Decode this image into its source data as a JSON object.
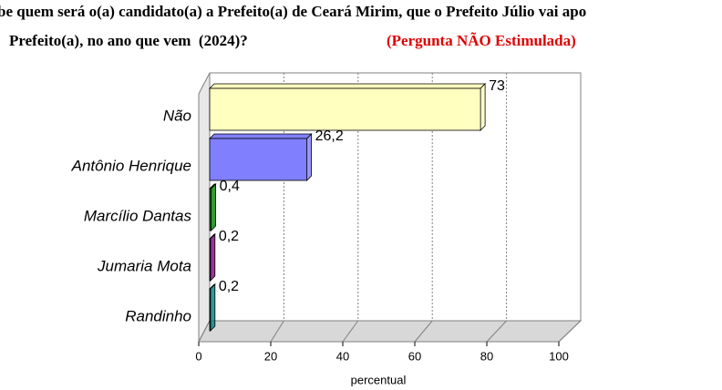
{
  "chart_data": {
    "type": "bar3d",
    "title": "be quem será o(a) candidato(a) a Prefeito(a) de Ceará Mirim, que o Prefeito Júlio vai apo",
    "title_line2": "Prefeito(a), no ano que vem  (2024)?",
    "subtitle": "(Pergunta NÃO Estimulada)",
    "categories": [
      "Não",
      "Antônio Henrique",
      "Marcílio Dantas",
      "Jumaria Mota",
      "Randinho"
    ],
    "values": [
      73,
      26.2,
      0.4,
      0.2,
      0.2
    ],
    "value_labels": [
      "73",
      "26,2",
      "0,4",
      "0,2",
      "0,2"
    ],
    "colors": [
      "#ffffc0",
      "#8080ff",
      "#008000",
      "#800080",
      "#008080"
    ],
    "xlim": [
      0,
      100
    ],
    "xticks": [
      0,
      20,
      40,
      60,
      80,
      100
    ],
    "xlabel": "percentual",
    "grid": true
  }
}
